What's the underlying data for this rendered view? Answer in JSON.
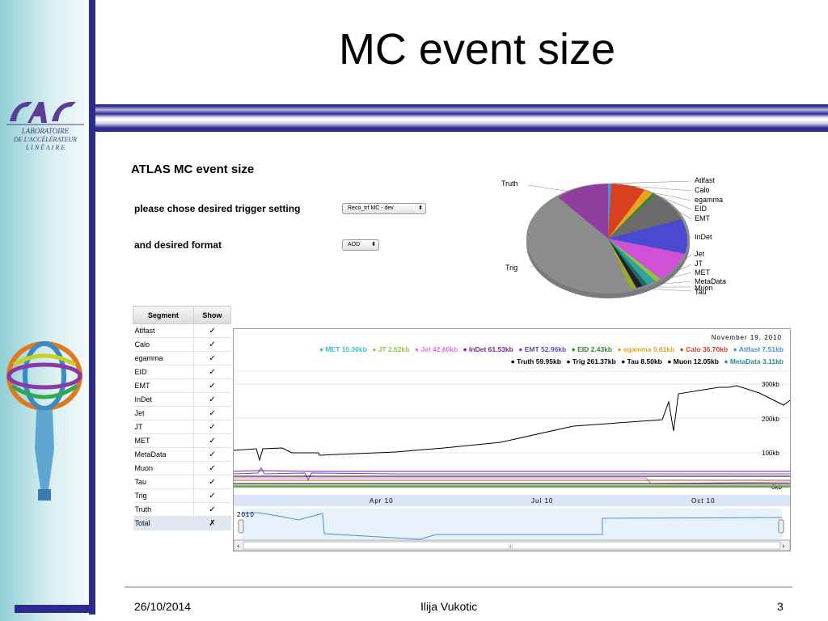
{
  "slide": {
    "title": "MC event size",
    "footer": {
      "date": "26/10/2014",
      "author": "Ilija Vukotic",
      "page": "3"
    },
    "sidebar": {
      "logo_text_line1": "LABORATOIRE",
      "logo_text_line2": "DE L'ACCÉLÉRATEUR",
      "logo_text_line3": "L I N É A I R E"
    }
  },
  "app": {
    "title": "ATLAS MC event size",
    "trigger_label": "please chose desired trigger setting",
    "trigger_value": "Reco_trf MC - dev",
    "format_label": "and desired format",
    "format_value": "AOD"
  },
  "pie": {
    "left_labels": [
      "Truth",
      "Trig"
    ],
    "right_labels": [
      "Atlfast",
      "Calo",
      "egamma",
      "EID",
      "EMT",
      "InDet",
      "Jet",
      "JT",
      "MET",
      "MetaData",
      "Muon",
      "Tau"
    ]
  },
  "table": {
    "headers": [
      "Segment",
      "Show"
    ],
    "rows": [
      {
        "segment": "Atlfast",
        "show": "✓"
      },
      {
        "segment": "Calo",
        "show": "✓"
      },
      {
        "segment": "egamma",
        "show": "✓"
      },
      {
        "segment": "EID",
        "show": "✓"
      },
      {
        "segment": "EMT",
        "show": "✓"
      },
      {
        "segment": "InDet",
        "show": "✓"
      },
      {
        "segment": "Jet",
        "show": "✓"
      },
      {
        "segment": "JT",
        "show": "✓"
      },
      {
        "segment": "MET",
        "show": "✓"
      },
      {
        "segment": "MetaData",
        "show": "✓"
      },
      {
        "segment": "Muon",
        "show": "✓"
      },
      {
        "segment": "Tau",
        "show": "✓"
      },
      {
        "segment": "Trig",
        "show": "✓"
      },
      {
        "segment": "Truth",
        "show": "✓"
      },
      {
        "segment": "Total",
        "show": "✗"
      }
    ]
  },
  "timeline": {
    "date": "November 19, 2010",
    "legend_row1": [
      {
        "text": "MET 10.30kb",
        "color": "#35c2c2"
      },
      {
        "text": "JT 2.62kb",
        "color": "#8cc83c"
      },
      {
        "text": "Jet 42.80kb",
        "color": "#e070e0"
      },
      {
        "text": "InDet 61.53kb",
        "color": "#7a1f9a"
      },
      {
        "text": "EMT 52.96kb",
        "color": "#5050c8"
      },
      {
        "text": "EID 2.43kb",
        "color": "#2d8a2d"
      },
      {
        "text": "egamma 9.81kb",
        "color": "#f0a020"
      },
      {
        "text": "Calo 36.70kb",
        "color": "#d04020"
      },
      {
        "text": "Atlfast 7.51kb",
        "color": "#4a90e2"
      }
    ],
    "legend_row2": [
      {
        "text": "Truth 59.95kb",
        "color": "#000000"
      },
      {
        "text": "Trig 261.37kb",
        "color": "#000000"
      },
      {
        "text": "Tau 8.50kb",
        "color": "#000000"
      },
      {
        "text": "Muon 12.05kb",
        "color": "#000000"
      },
      {
        "text": "MetaData 3.11kb",
        "color": "#2a8a8a"
      }
    ],
    "y_ticks": [
      "300kb",
      "200kb",
      "100kb",
      "0kb"
    ],
    "x_ticks": [
      "Apr 10",
      "Jul 10",
      "Oct 10"
    ],
    "range_label": "2010",
    "scroll_grip": "III"
  }
}
